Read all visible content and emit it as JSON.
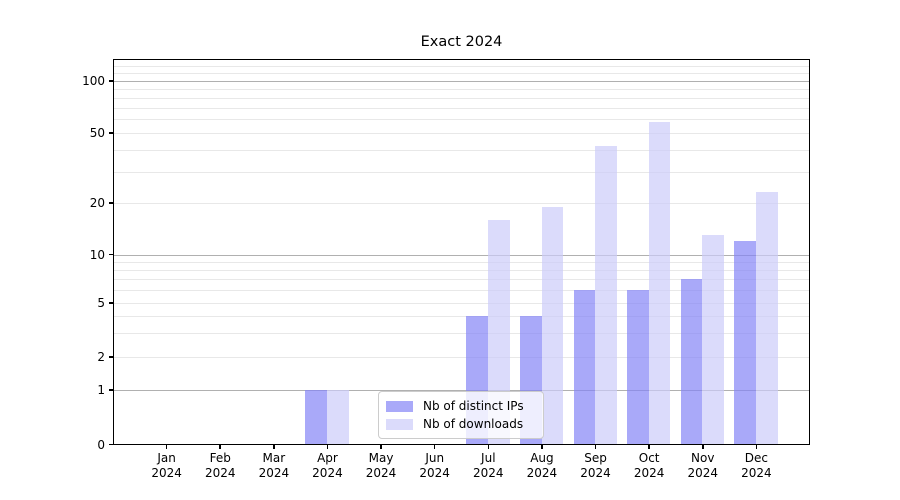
{
  "chart_data": {
    "type": "bar",
    "title": "Exact 2024",
    "x_tick_months": [
      "Jan",
      "Feb",
      "Mar",
      "Apr",
      "May",
      "Jun",
      "Jul",
      "Aug",
      "Sep",
      "Oct",
      "Nov",
      "Dec"
    ],
    "x_tick_year": "2024",
    "y_ticks": [
      0,
      1,
      2,
      5,
      10,
      20,
      50,
      100
    ],
    "y_scale": "log-like (0 shown at baseline)",
    "ylim": [
      0,
      130
    ],
    "grid": true,
    "legend_position": "bottom-center-left inside plot",
    "series": [
      {
        "name": "Nb of distinct IPs",
        "color": "rgba(132,132,247,0.7)",
        "values": [
          0,
          0,
          0,
          1,
          0,
          0,
          4,
          4,
          6,
          6,
          7,
          12
        ]
      },
      {
        "name": "Nb of downloads",
        "color": "rgba(204,204,250,0.7)",
        "values": [
          0,
          0,
          0,
          1,
          0,
          0,
          16,
          19,
          42,
          58,
          13,
          23
        ]
      }
    ]
  }
}
